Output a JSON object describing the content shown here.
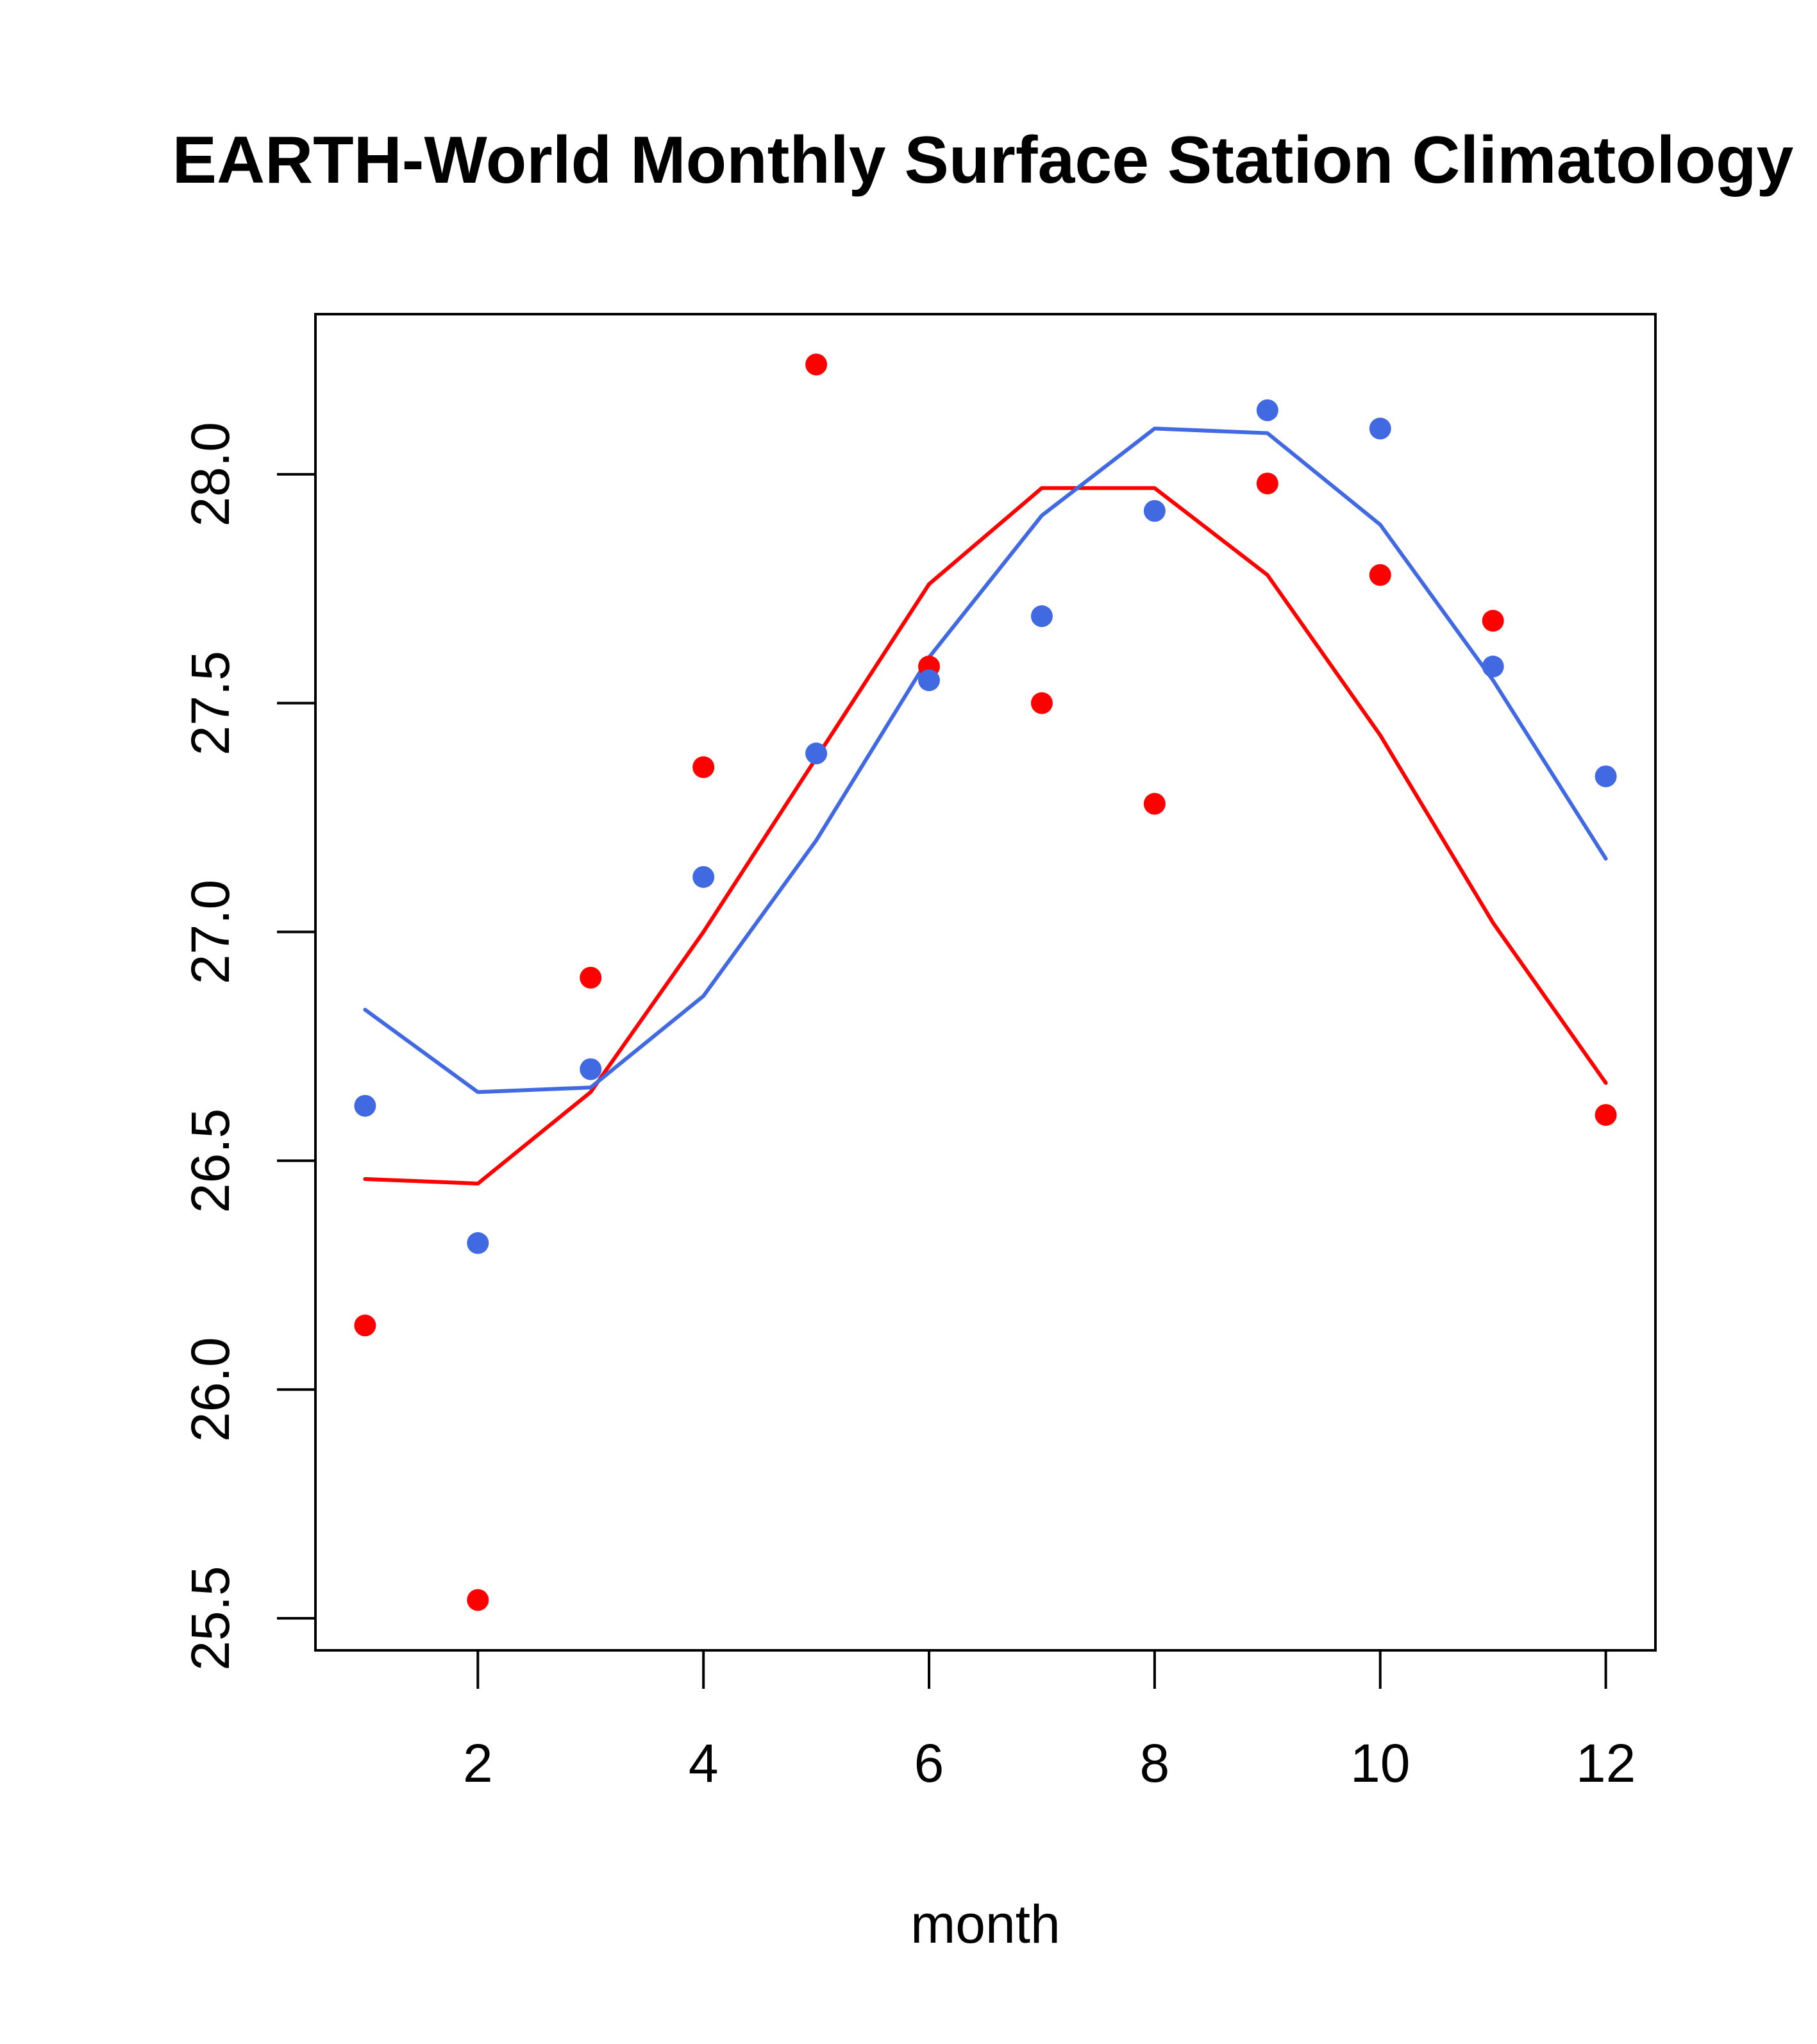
{
  "chart_data": {
    "type": "scatter",
    "title": "EARTH-World Monthly Surface Station Climatology",
    "xlabel": "month",
    "ylabel": "",
    "xlim": [
      0.56,
      12.44
    ],
    "ylim": [
      25.43,
      28.35
    ],
    "x": [
      1,
      2,
      3,
      4,
      5,
      6,
      7,
      8,
      9,
      10,
      11,
      12
    ],
    "xticks": [
      2,
      4,
      6,
      8,
      10,
      12
    ],
    "xtick_labels": [
      "2",
      "4",
      "6",
      "8",
      "10",
      "12"
    ],
    "yticks": [
      25.5,
      26.0,
      26.5,
      27.0,
      27.5,
      28.0
    ],
    "ytick_labels": [
      "25.5",
      "26.0",
      "26.5",
      "27.0",
      "27.5",
      "28.0"
    ],
    "grid": false,
    "legend": null,
    "series": [
      {
        "name": "red points",
        "kind": "points",
        "color": "#ff0000",
        "values": [
          26.14,
          25.54,
          26.9,
          27.36,
          28.24,
          27.58,
          27.5,
          27.28,
          27.98,
          27.78,
          27.68,
          26.6
        ]
      },
      {
        "name": "blue points",
        "kind": "points",
        "color": "#4169e1",
        "values": [
          26.62,
          26.32,
          26.7,
          27.12,
          27.39,
          27.55,
          27.69,
          27.92,
          28.14,
          28.1,
          27.58,
          27.34
        ]
      },
      {
        "name": "red line",
        "kind": "line",
        "color": "#ff0000",
        "values": [
          26.46,
          26.45,
          26.65,
          27.0,
          27.38,
          27.76,
          27.97,
          27.97,
          27.78,
          27.43,
          27.02,
          26.67
        ]
      },
      {
        "name": "blue line",
        "kind": "line",
        "color": "#4169e1",
        "values": [
          26.83,
          26.65,
          26.66,
          26.86,
          27.2,
          27.6,
          27.91,
          28.1,
          28.09,
          27.89,
          27.55,
          27.16
        ]
      }
    ]
  }
}
